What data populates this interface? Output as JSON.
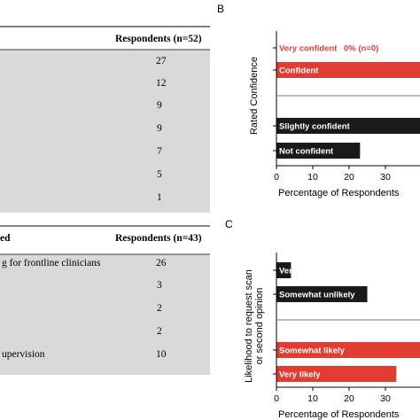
{
  "tables": [
    {
      "header_left": "",
      "header_right": "Respondents (n=52)",
      "rows": [
        {
          "label": "",
          "value": "27"
        },
        {
          "label": "",
          "value": "12"
        },
        {
          "label": "",
          "value": "9"
        },
        {
          "label": "",
          "value": "9"
        },
        {
          "label": "",
          "value": "7"
        },
        {
          "label": "",
          "value": "5"
        },
        {
          "label": "",
          "value": "1"
        }
      ]
    },
    {
      "header_left": "ed",
      "header_right": "Respondents (n=43)",
      "rows": [
        {
          "label": "g for frontline clinicians",
          "value": "26"
        },
        {
          "label": "",
          "value": "3"
        },
        {
          "label": "",
          "value": "2"
        },
        {
          "label": "",
          "value": "2"
        },
        {
          "label": "upervision",
          "value": "10"
        }
      ]
    }
  ],
  "chart_data": [
    {
      "panel_letter": "B",
      "type": "bar",
      "orientation": "horizontal",
      "ylabel": "Rated Confidence",
      "xlabel": "Percentage of Respondents",
      "xlim": [
        0,
        40
      ],
      "xticks": [
        0,
        10,
        20,
        30
      ],
      "categories": [
        "Very confident",
        "Confident",
        "Slightly confident",
        "Not confident"
      ],
      "values": [
        0,
        40,
        40,
        23
      ],
      "colors": [
        "#e03c31",
        "#e03c31",
        "#1a1a1a",
        "#1a1a1a"
      ],
      "bar_labels": [
        "Very confident",
        "Confident",
        "Slightly confident",
        "Not confident"
      ],
      "annotation": "0% (n=0)"
    },
    {
      "panel_letter": "C",
      "type": "bar",
      "orientation": "horizontal",
      "ylabel_lines": [
        "Likelihood to request scan",
        "or second opinion"
      ],
      "xlabel": "Percentage of Respondents",
      "xlim": [
        0,
        40
      ],
      "xticks": [
        0,
        10,
        20,
        30
      ],
      "categories": [
        "Very unlikely",
        "Somewhat unlikely",
        "Somewhat likely",
        "Very likely"
      ],
      "values": [
        4,
        25,
        40,
        33
      ],
      "colors": [
        "#1a1a1a",
        "#1a1a1a",
        "#e03c31",
        "#e03c31"
      ],
      "bar_labels": [
        "Very unlikely",
        "Somewhat unlikely",
        "Somewhat likely",
        "Very likely"
      ]
    }
  ]
}
